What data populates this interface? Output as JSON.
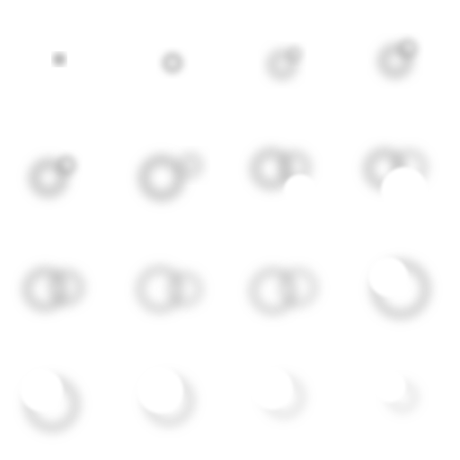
{
  "sprite_sheet": {
    "columns": 4,
    "rows": 4,
    "frames": [
      {
        "id": "frame-01",
        "shape": "puff-tiny"
      },
      {
        "id": "frame-02",
        "shape": "puff-small"
      },
      {
        "id": "frame-03",
        "shape": "puff-medium"
      },
      {
        "id": "frame-04",
        "shape": "puff-medium-tail"
      },
      {
        "id": "frame-05",
        "shape": "cloud-lobed"
      },
      {
        "id": "frame-06",
        "shape": "cloud-double"
      },
      {
        "id": "frame-07",
        "shape": "cloud-bite"
      },
      {
        "id": "frame-08",
        "shape": "cloud-bite-large"
      },
      {
        "id": "frame-09",
        "shape": "ring-wide"
      },
      {
        "id": "frame-10",
        "shape": "ring-wide-thin"
      },
      {
        "id": "frame-11",
        "shape": "ring-wide-soft"
      },
      {
        "id": "frame-12",
        "shape": "crescent-ring"
      },
      {
        "id": "frame-13",
        "shape": "crescent-large"
      },
      {
        "id": "frame-14",
        "shape": "crescent-medium"
      },
      {
        "id": "frame-15",
        "shape": "crescent-small"
      },
      {
        "id": "frame-16",
        "shape": "crescent-tiny"
      }
    ],
    "colors": {
      "background": "#ffffff",
      "smoke": "#9a9a9a"
    }
  }
}
